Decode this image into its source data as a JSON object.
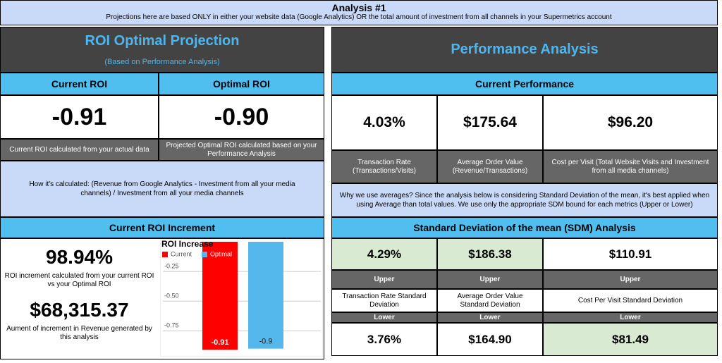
{
  "header": {
    "title": "Analysis #1",
    "subtitle": "Projections here are based ONLY in either your website data (Google Analytics) OR the total amount of investment from all channels in your Supermetrics account"
  },
  "roi_projection": {
    "title": "ROI Optimal Projection",
    "subtitle": "(Based on Performance Analysis)",
    "columns": [
      {
        "label": "Current ROI",
        "value": "-0.91",
        "caption": "Current ROI calculated from your actual data"
      },
      {
        "label": "Optimal ROI",
        "value": "-0.90",
        "caption": "Projected Optimal ROI calculated based on your Performance Analysis"
      }
    ],
    "explanation": "How it's calculated: (Revenue from Google Analytics - Investment from all your media channels) / Investment from all your media channels"
  },
  "roi_increment": {
    "title": "Current ROI Increment",
    "items": [
      {
        "value": "98.94%",
        "caption": "ROI increment calculated from your current ROI vs your Optimal ROI"
      },
      {
        "value": "$68,315.37",
        "caption": "Aument of increment in Revenue generated by this analysis"
      }
    ]
  },
  "chart_data": {
    "type": "bar",
    "title": "ROI Increase",
    "series": [
      {
        "name": "Current",
        "color": "#ff0000",
        "values": [
          -0.91
        ]
      },
      {
        "name": "Optimal",
        "color": "#55b8ec",
        "values": [
          -0.9
        ]
      }
    ],
    "ylim": [
      -0.92,
      0
    ],
    "yticks": [
      -0.25,
      {
        "value": -0.5,
        "label": "-0.50"
      },
      -0.75
    ],
    "grid": true
  },
  "performance": {
    "title": "Performance Analysis",
    "section": "Current Performance",
    "metrics": [
      {
        "value": "4.03%",
        "caption": "Transaction Rate (Transactions/Visits)"
      },
      {
        "value": "$175.64",
        "caption": "Average Order Value (Revenue/Transactions)"
      },
      {
        "value": "$96.20",
        "caption": "Cost per Visit (Total Website Visits and Investment from all media channels)"
      }
    ],
    "note": "Why we use averages? Since the analysis below is considering Standard Deviation of the mean, it's best applied when using Average than total values. We use only the appropriate SDM bound for each metrics (Upper or Lower)",
    "sdm": {
      "title": "Standard Deviation of the mean (SDM) Analysis",
      "columns": [
        {
          "upper": "4.29%",
          "upper_label": "Upper",
          "description": "Transaction Rate Standard Deviation",
          "lower_label": "Lower",
          "lower": "3.76%"
        },
        {
          "upper": "$186.38",
          "upper_label": "Upper",
          "description": "Average Order Value Standard Deviation",
          "lower_label": "Lower",
          "lower": "$164.90"
        },
        {
          "upper": "$110.91",
          "upper_label": "Upper",
          "description": "Cost Per Visit Standard Deviation",
          "lower_label": "Lower",
          "lower": "$81.49"
        }
      ]
    }
  }
}
